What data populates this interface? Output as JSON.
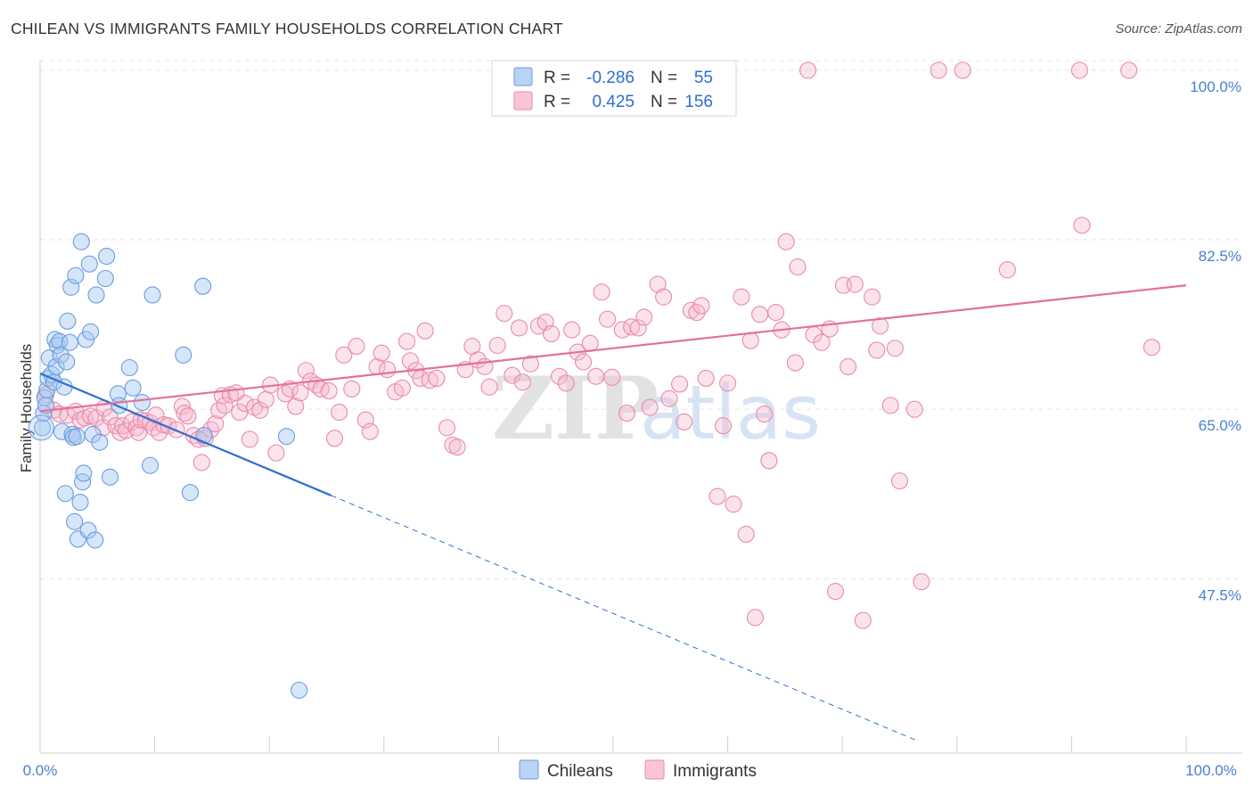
{
  "title": "CHILEAN VS IMMIGRANTS FAMILY HOUSEHOLDS CORRELATION CHART",
  "source": "Source: ZipAtlas.com",
  "watermark": {
    "part1": "ZIP",
    "part2": "atlas"
  },
  "chart_data": {
    "type": "scatter",
    "title": "CHILEAN VS IMMIGRANTS FAMILY HOUSEHOLDS CORRELATION CHART",
    "xlabel": "",
    "ylabel": "Family Households",
    "xlim": [
      0,
      100
    ],
    "ylim": [
      29.5,
      101
    ],
    "x_tick_labels": [
      "0.0%",
      "100.0%"
    ],
    "y_ticks": [
      47.5,
      65.0,
      82.5,
      100.0
    ],
    "y_tick_labels": [
      "47.5%",
      "65.0%",
      "82.5%",
      "100.0%"
    ],
    "grid": true,
    "legend_position": "top-center",
    "colors": {
      "chileans": "#4a86d8",
      "immigrants": "#e47aa2",
      "chileans_line": "#2f6fd0",
      "immigrants_line": "#e4709a"
    },
    "legend": [
      {
        "name": "Chileans",
        "r_label": "R =",
        "r_value": "-0.286",
        "n_label": "N =",
        "n_value": "55"
      },
      {
        "name": "Immigrants",
        "r_label": "R =",
        "r_value": "0.425",
        "n_label": "N =",
        "n_value": "156"
      }
    ],
    "series": [
      {
        "name": "Chileans",
        "trend": {
          "x0": 0,
          "y0": 68.7,
          "x1": 25.4,
          "y1": 56.1,
          "dash_to_x": 76.5,
          "dash_to_y": 30.8
        },
        "points": [
          [
            0.2,
            63.1
          ],
          [
            0.3,
            64.6
          ],
          [
            0.4,
            66.2
          ],
          [
            0.5,
            65.4
          ],
          [
            0.6,
            67.0
          ],
          [
            0.7,
            68.2
          ],
          [
            0.8,
            70.3
          ],
          [
            1.0,
            68.6
          ],
          [
            1.2,
            67.8
          ],
          [
            1.3,
            72.2
          ],
          [
            1.4,
            69.4
          ],
          [
            1.5,
            71.6
          ],
          [
            1.7,
            72.0
          ],
          [
            1.8,
            70.6
          ],
          [
            1.9,
            62.7
          ],
          [
            2.1,
            67.3
          ],
          [
            2.2,
            56.3
          ],
          [
            2.3,
            69.9
          ],
          [
            2.4,
            74.1
          ],
          [
            2.6,
            71.9
          ],
          [
            2.7,
            77.6
          ],
          [
            2.8,
            62.4
          ],
          [
            2.9,
            62.1
          ],
          [
            3.0,
            53.4
          ],
          [
            3.1,
            78.8
          ],
          [
            3.2,
            62.2
          ],
          [
            3.3,
            51.6
          ],
          [
            3.5,
            55.4
          ],
          [
            3.6,
            82.3
          ],
          [
            3.7,
            57.5
          ],
          [
            3.8,
            58.4
          ],
          [
            4.0,
            72.2
          ],
          [
            4.2,
            52.5
          ],
          [
            4.3,
            80.0
          ],
          [
            4.4,
            73.0
          ],
          [
            4.6,
            62.4
          ],
          [
            4.8,
            51.5
          ],
          [
            4.9,
            76.8
          ],
          [
            5.2,
            61.6
          ],
          [
            5.7,
            78.5
          ],
          [
            5.8,
            80.8
          ],
          [
            6.1,
            58.0
          ],
          [
            6.8,
            66.6
          ],
          [
            6.9,
            65.4
          ],
          [
            7.8,
            69.3
          ],
          [
            8.1,
            67.2
          ],
          [
            8.9,
            65.7
          ],
          [
            9.6,
            59.2
          ],
          [
            9.8,
            76.8
          ],
          [
            12.5,
            70.6
          ],
          [
            13.1,
            56.4
          ],
          [
            14.2,
            77.7
          ],
          [
            14.3,
            62.3
          ],
          [
            21.5,
            62.2
          ],
          [
            22.6,
            36.0
          ]
        ]
      },
      {
        "name": "Immigrants",
        "trend": {
          "x0": 0,
          "y0": 64.8,
          "x1": 100,
          "y1": 77.8
        },
        "points": [
          [
            0.5,
            66.5
          ],
          [
            1.2,
            64.9
          ],
          [
            1.7,
            64.5
          ],
          [
            2.4,
            64.4
          ],
          [
            3.1,
            64.8
          ],
          [
            3.5,
            63.9
          ],
          [
            3.9,
            64.1
          ],
          [
            4.4,
            64.3
          ],
          [
            4.9,
            64.1
          ],
          [
            5.5,
            63.1
          ],
          [
            5.6,
            65.1
          ],
          [
            6.1,
            64.2
          ],
          [
            6.6,
            63.3
          ],
          [
            7.0,
            62.6
          ],
          [
            7.2,
            63.3
          ],
          [
            7.5,
            62.8
          ],
          [
            8.0,
            63.7
          ],
          [
            8.4,
            63.1
          ],
          [
            8.6,
            62.6
          ],
          [
            8.8,
            63.9
          ],
          [
            9.2,
            63.8
          ],
          [
            9.6,
            63.6
          ],
          [
            9.9,
            63.1
          ],
          [
            10.1,
            64.4
          ],
          [
            10.4,
            62.6
          ],
          [
            10.8,
            63.4
          ],
          [
            11.2,
            63.3
          ],
          [
            11.9,
            62.9
          ],
          [
            12.4,
            65.3
          ],
          [
            12.6,
            64.6
          ],
          [
            12.9,
            64.3
          ],
          [
            13.4,
            62.3
          ],
          [
            13.8,
            61.9
          ],
          [
            14.1,
            59.5
          ],
          [
            14.4,
            62.0
          ],
          [
            14.9,
            62.9
          ],
          [
            15.3,
            63.5
          ],
          [
            15.6,
            64.9
          ],
          [
            15.9,
            66.4
          ],
          [
            16.1,
            65.4
          ],
          [
            16.6,
            66.5
          ],
          [
            17.1,
            66.7
          ],
          [
            17.4,
            64.7
          ],
          [
            17.9,
            65.6
          ],
          [
            18.3,
            61.9
          ],
          [
            18.7,
            65.2
          ],
          [
            19.2,
            64.9
          ],
          [
            19.7,
            66.0
          ],
          [
            20.1,
            67.5
          ],
          [
            20.6,
            60.5
          ],
          [
            21.4,
            66.6
          ],
          [
            21.8,
            67.1
          ],
          [
            22.3,
            65.3
          ],
          [
            22.7,
            66.7
          ],
          [
            23.2,
            69.0
          ],
          [
            23.6,
            67.9
          ],
          [
            24.1,
            67.5
          ],
          [
            24.5,
            67.1
          ],
          [
            25.2,
            66.9
          ],
          [
            25.7,
            62.0
          ],
          [
            26.1,
            64.7
          ],
          [
            26.5,
            70.6
          ],
          [
            27.2,
            67.1
          ],
          [
            27.6,
            71.5
          ],
          [
            28.4,
            63.9
          ],
          [
            28.8,
            62.7
          ],
          [
            29.4,
            69.4
          ],
          [
            29.8,
            70.8
          ],
          [
            30.3,
            69.1
          ],
          [
            31.0,
            66.8
          ],
          [
            31.6,
            67.2
          ],
          [
            32.0,
            72.0
          ],
          [
            32.3,
            70.0
          ],
          [
            32.8,
            69.0
          ],
          [
            33.2,
            68.2
          ],
          [
            33.6,
            73.1
          ],
          [
            34.0,
            68.0
          ],
          [
            34.6,
            68.2
          ],
          [
            35.5,
            63.1
          ],
          [
            36.0,
            61.3
          ],
          [
            36.4,
            61.1
          ],
          [
            37.1,
            69.1
          ],
          [
            37.7,
            71.5
          ],
          [
            38.2,
            70.1
          ],
          [
            38.8,
            69.4
          ],
          [
            39.2,
            67.3
          ],
          [
            39.9,
            71.6
          ],
          [
            40.5,
            74.9
          ],
          [
            41.2,
            68.5
          ],
          [
            41.8,
            73.4
          ],
          [
            42.1,
            67.8
          ],
          [
            42.8,
            69.7
          ],
          [
            43.5,
            73.6
          ],
          [
            44.1,
            74.0
          ],
          [
            44.6,
            72.8
          ],
          [
            45.3,
            68.4
          ],
          [
            45.9,
            67.7
          ],
          [
            46.4,
            73.2
          ],
          [
            46.9,
            70.9
          ],
          [
            47.4,
            69.9
          ],
          [
            48.0,
            71.8
          ],
          [
            48.5,
            68.4
          ],
          [
            49.0,
            77.1
          ],
          [
            49.5,
            74.3
          ],
          [
            49.9,
            68.3
          ],
          [
            50.8,
            73.2
          ],
          [
            51.2,
            64.6
          ],
          [
            51.6,
            73.5
          ],
          [
            52.2,
            73.4
          ],
          [
            52.7,
            74.5
          ],
          [
            53.2,
            65.2
          ],
          [
            53.9,
            77.9
          ],
          [
            54.4,
            76.6
          ],
          [
            54.9,
            66.1
          ],
          [
            55.8,
            67.6
          ],
          [
            56.2,
            63.7
          ],
          [
            56.8,
            75.2
          ],
          [
            57.3,
            75.0
          ],
          [
            57.7,
            75.7
          ],
          [
            58.1,
            68.2
          ],
          [
            59.1,
            56.0
          ],
          [
            59.6,
            63.3
          ],
          [
            60.0,
            67.7
          ],
          [
            60.5,
            55.2
          ],
          [
            61.2,
            76.6
          ],
          [
            61.6,
            52.1
          ],
          [
            62.0,
            72.1
          ],
          [
            62.4,
            43.5
          ],
          [
            62.8,
            74.8
          ],
          [
            63.2,
            64.5
          ],
          [
            63.6,
            59.7
          ],
          [
            64.2,
            75.0
          ],
          [
            64.7,
            73.2
          ],
          [
            65.1,
            82.3
          ],
          [
            65.9,
            69.8
          ],
          [
            66.1,
            79.7
          ],
          [
            67.5,
            72.7
          ],
          [
            68.2,
            71.9
          ],
          [
            68.9,
            73.3
          ],
          [
            69.4,
            46.2
          ],
          [
            70.1,
            77.8
          ],
          [
            70.5,
            69.4
          ],
          [
            71.1,
            77.9
          ],
          [
            71.8,
            43.2
          ],
          [
            72.6,
            76.6
          ],
          [
            73.0,
            71.1
          ],
          [
            73.3,
            73.6
          ],
          [
            74.2,
            65.4
          ],
          [
            74.6,
            71.3
          ],
          [
            75.0,
            57.6
          ],
          [
            76.3,
            65.0
          ],
          [
            76.9,
            47.2
          ],
          [
            84.4,
            79.4
          ],
          [
            90.9,
            84.0
          ],
          [
            67.0,
            100.0
          ],
          [
            78.4,
            100.0
          ],
          [
            80.5,
            100.0
          ],
          [
            90.7,
            100.0
          ],
          [
            95.0,
            100.0
          ],
          [
            97.0,
            71.4
          ]
        ]
      }
    ]
  }
}
